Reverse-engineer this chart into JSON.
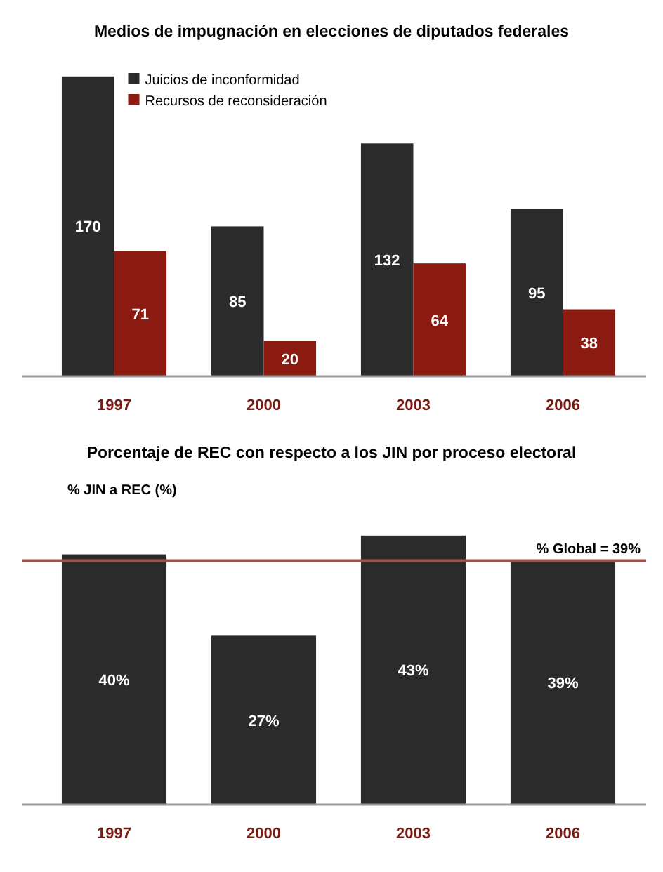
{
  "chart_data": [
    {
      "type": "bar",
      "title": "Medios de impugnación en elecciones de diputados federales",
      "categories": [
        "1997",
        "2000",
        "2003",
        "2006"
      ],
      "series": [
        {
          "name": "Juicios de inconformidad",
          "color": "#2b2b2b",
          "values": [
            170,
            85,
            132,
            95
          ]
        },
        {
          "name": "Recursos de reconsideración",
          "color": "#8b1a10",
          "values": [
            71,
            20,
            64,
            38
          ]
        }
      ],
      "data_labels": true,
      "legend": "top left"
    },
    {
      "type": "bar",
      "title": "Porcentaje de REC con respecto a los JIN por proceso electoral",
      "ylabel": "% JIN a REC (%)",
      "categories": [
        "1997",
        "2000",
        "2003",
        "2006"
      ],
      "series": [
        {
          "color": "#2b2b2b",
          "values": [
            40,
            27,
            43,
            39
          ],
          "value_labels": [
            "40%",
            "27%",
            "43%",
            "39%"
          ]
        }
      ],
      "ref_lines": [
        {
          "axis": "y",
          "value": 39,
          "label": "% Global = 39%",
          "color": "#a0524a"
        }
      ]
    }
  ]
}
